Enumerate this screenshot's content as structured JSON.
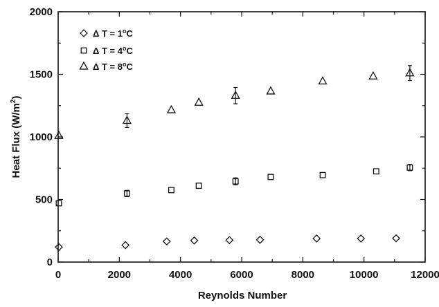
{
  "chart_data": {
    "type": "scatter",
    "title": "",
    "xlabel": "Reynolds Number",
    "ylabel": "Heat Flux (W/m²)",
    "ylabel_parts": {
      "main": "Heat Flux (W/m",
      "sup": "2",
      "close": ")"
    },
    "xlim": [
      0,
      12000
    ],
    "ylim": [
      0,
      2000
    ],
    "xticks": [
      0,
      2000,
      4000,
      6000,
      8000,
      10000,
      12000
    ],
    "yticks": [
      0,
      500,
      1000,
      1500,
      2000
    ],
    "grid": false,
    "legend_position": "top-left",
    "series": [
      {
        "name": "Δ T = 1°C",
        "label_parts": {
          "delta": "Δ",
          "main": " T = 1",
          "sup": "o",
          "unit": "C"
        },
        "marker": "diamond",
        "x": [
          0,
          2200,
          3550,
          4450,
          5600,
          6600,
          8450,
          9900,
          11050
        ],
        "y": [
          120,
          135,
          165,
          172,
          175,
          178,
          188,
          188,
          190
        ],
        "err": [
          0,
          0,
          0,
          0,
          0,
          0,
          0,
          0,
          0
        ]
      },
      {
        "name": "Δ T = 4°C",
        "label_parts": {
          "delta": "Δ",
          "main": " T = 4",
          "sup": "o",
          "unit": "C"
        },
        "marker": "square",
        "x": [
          0,
          2250,
          3700,
          4600,
          5800,
          6950,
          8650,
          10400,
          11500
        ],
        "y": [
          470,
          548,
          575,
          610,
          645,
          680,
          695,
          725,
          755
        ],
        "err": [
          0,
          25,
          0,
          0,
          28,
          0,
          0,
          0,
          25
        ]
      },
      {
        "name": "Δ T = 8°C",
        "label_parts": {
          "delta": "Δ",
          "main": " T = 8",
          "sup": "o",
          "unit": "C"
        },
        "marker": "triangle",
        "x": [
          0,
          2250,
          3700,
          4600,
          5800,
          6950,
          8650,
          10300,
          11500
        ],
        "y": [
          1010,
          1130,
          1215,
          1275,
          1330,
          1365,
          1445,
          1485,
          1510
        ],
        "err": [
          0,
          55,
          0,
          0,
          65,
          0,
          0,
          0,
          60
        ]
      }
    ]
  }
}
